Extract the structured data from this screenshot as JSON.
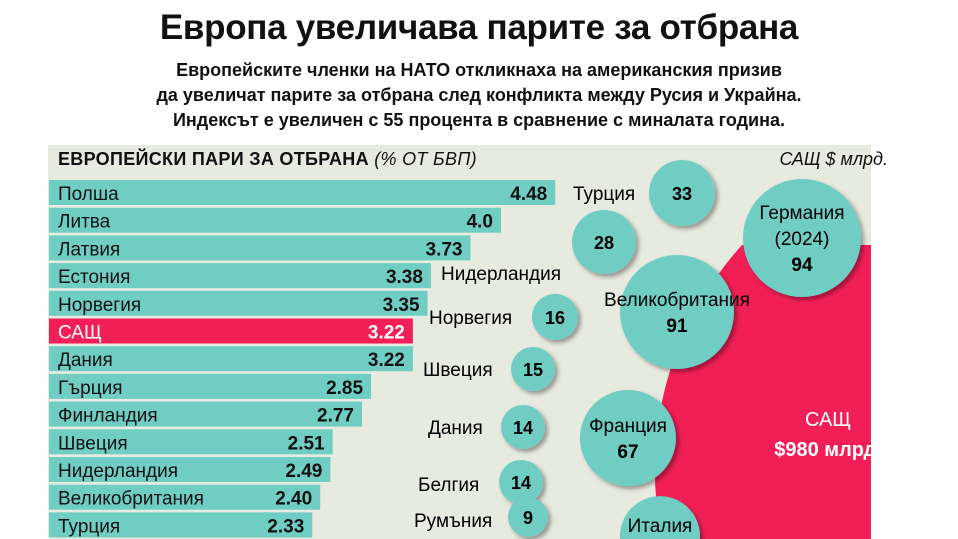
{
  "title": "Европа увеличава парите за отбрана",
  "subtitle_lines": [
    "Европейските членки на НАТО откликнаха на американския призив",
    "да увеличат парите за отбрана след конфликта между Русия и Украйна.",
    "Индексът е увеличен с 55 процента в сравнение с миналата година."
  ],
  "colors": {
    "bar": "#6fcdc4",
    "highlight": "#f21f57",
    "panel": "#e7eadf",
    "bubble": "#6fcdc4"
  },
  "chart_data": [
    {
      "type": "bar",
      "orientation": "horizontal",
      "title": "ЕВРОПЕЙСКИ ПАРИ ЗА ОТБРАНА",
      "unit_label": "(% ОТ БВП)",
      "categories": [
        "Полша",
        "Литва",
        "Латвия",
        "Естония",
        "Норвегия",
        "САЩ",
        "Дания",
        "Гърция",
        "Финландия",
        "Швеция",
        "Нидерландия",
        "Великобритания",
        "Турция"
      ],
      "values": [
        4.48,
        4.0,
        3.73,
        3.38,
        3.35,
        3.22,
        3.22,
        2.85,
        2.77,
        2.51,
        2.49,
        2.4,
        2.33
      ],
      "value_labels": [
        "4.48",
        "4.0",
        "3.73",
        "3.38",
        "3.35",
        "3.22",
        "3.22",
        "2.85",
        "2.77",
        "2.51",
        "2.49",
        "2.40",
        "2.33"
      ],
      "highlight": "САЩ"
    },
    {
      "type": "bubble",
      "title": "САЩ $ млрд.",
      "items": [
        {
          "name": "Турция",
          "value": 33,
          "label": "33"
        },
        {
          "name": "Нидерландия",
          "value": 28,
          "label": "28"
        },
        {
          "name": "Германия (2024)",
          "value": 94,
          "label": "94",
          "lines": [
            "Германия",
            "(2024)"
          ]
        },
        {
          "name": "Великобритания",
          "value": 91,
          "label": "91"
        },
        {
          "name": "Норвегия",
          "value": 16,
          "label": "16"
        },
        {
          "name": "Швеция",
          "value": 15,
          "label": "15"
        },
        {
          "name": "Дания",
          "value": 14,
          "label": "14"
        },
        {
          "name": "Франция",
          "value": 67,
          "label": "67"
        },
        {
          "name": "Белгия",
          "value": 14,
          "label": "14"
        },
        {
          "name": "Румъния",
          "value": 9,
          "label": "9"
        },
        {
          "name": "Италия",
          "value": null,
          "label": ""
        }
      ],
      "usa": {
        "name": "САЩ",
        "label": "$980 млрд.",
        "value": 980
      }
    }
  ]
}
